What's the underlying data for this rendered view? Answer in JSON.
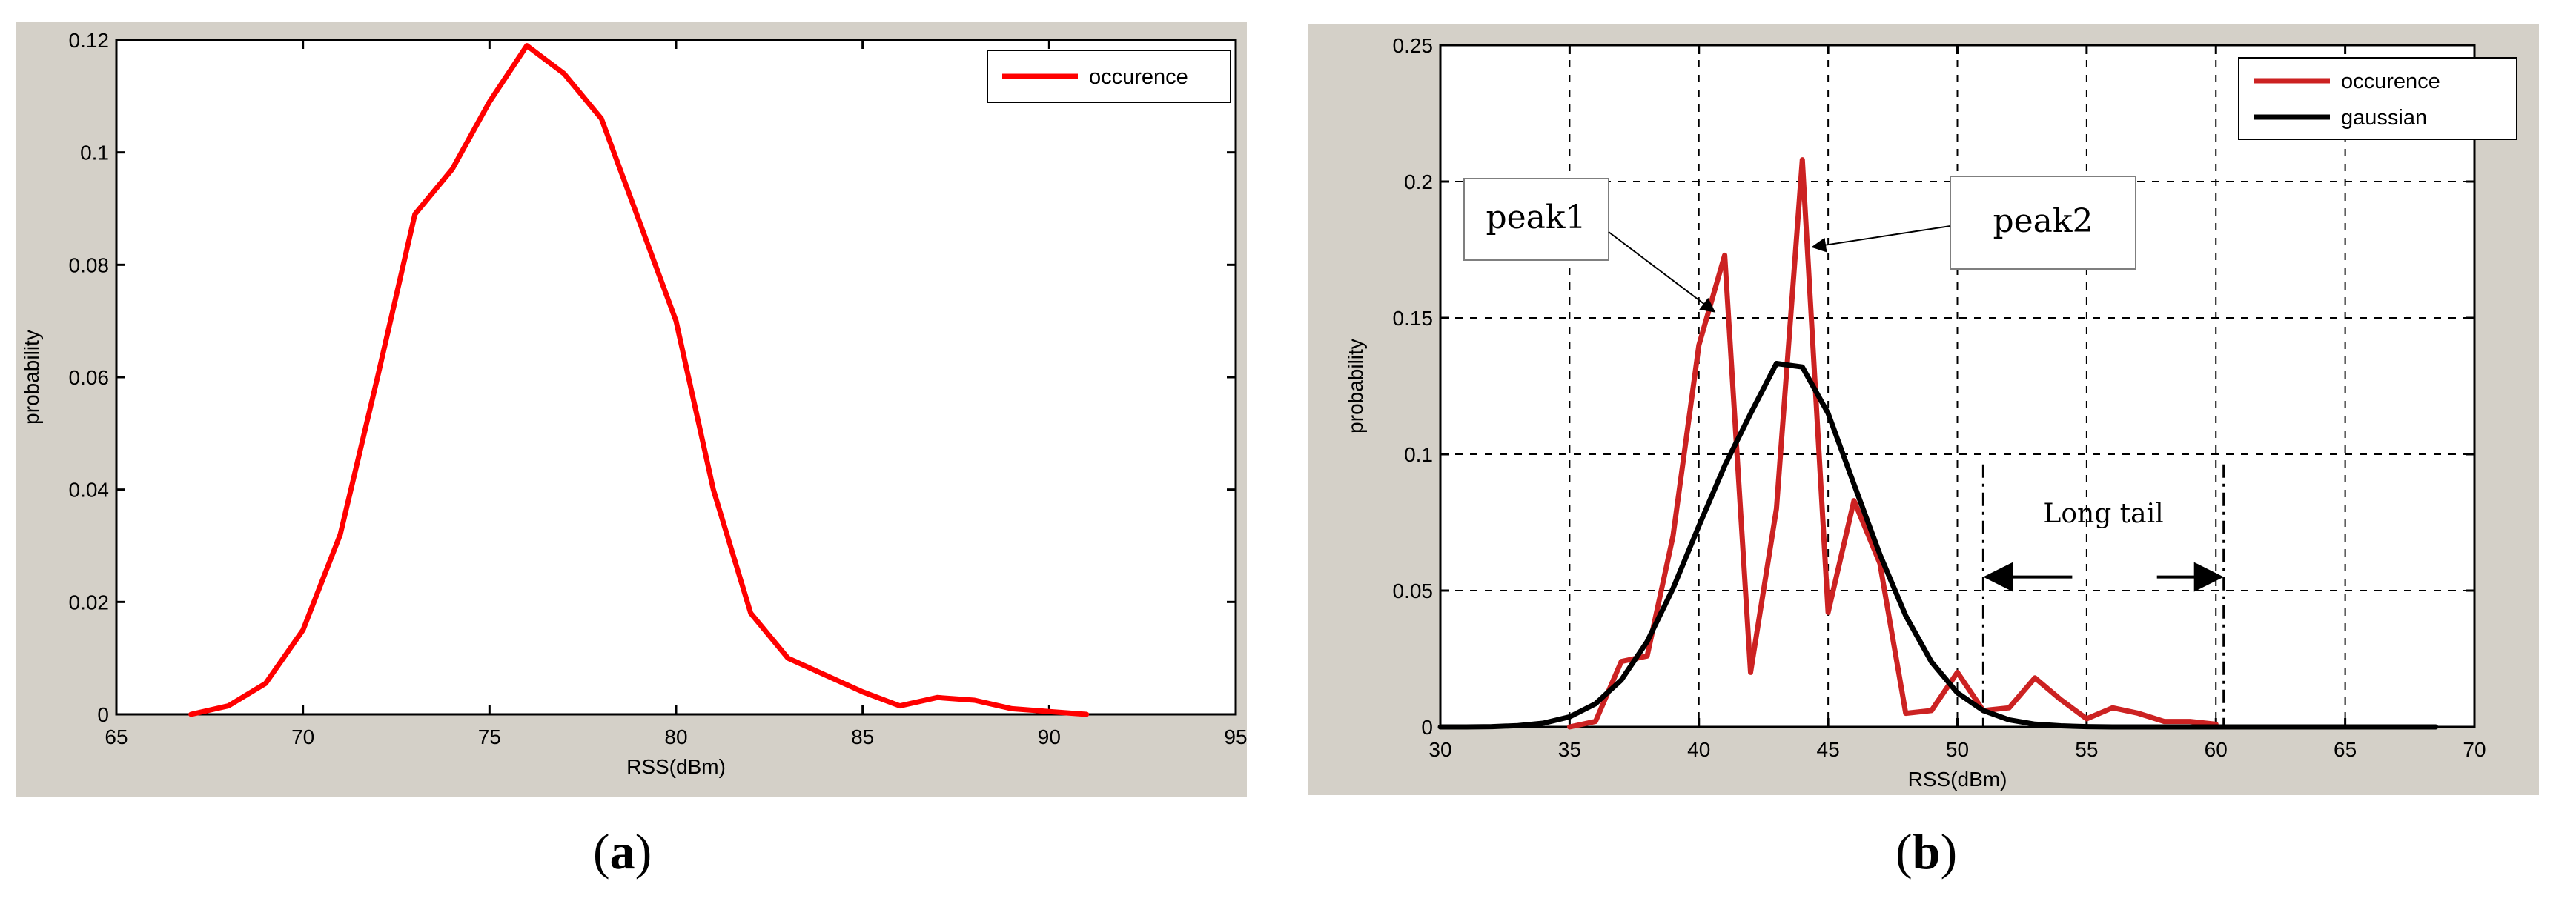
{
  "chart_data": [
    {
      "type": "line",
      "panel_label": "a",
      "xlabel": "RSS(dBm)",
      "ylabel": "probability",
      "xlim": [
        65,
        95
      ],
      "ylim": [
        0,
        0.12
      ],
      "xticks": [
        65,
        70,
        75,
        80,
        85,
        90,
        95
      ],
      "yticks": [
        0,
        0.02,
        0.04,
        0.06,
        0.08,
        0.1,
        0.12
      ],
      "xtick_labels": [
        "65",
        "70",
        "75",
        "80",
        "85",
        "90",
        "95"
      ],
      "ytick_labels": [
        "0",
        "0.02",
        "0.04",
        "0.06",
        "0.08",
        "0.1",
        "0.12"
      ],
      "grid": false,
      "legend_position": "top-right",
      "series": [
        {
          "name": "occurence",
          "color": "#ff0000",
          "x": [
            67,
            68,
            69,
            70,
            71,
            72,
            73,
            74,
            75,
            76,
            77,
            78,
            79,
            80,
            81,
            82,
            83,
            84,
            85,
            86,
            87,
            88,
            89,
            90,
            91
          ],
          "y": [
            0.0,
            0.0015,
            0.0055,
            0.015,
            0.032,
            0.06,
            0.089,
            0.097,
            0.109,
            0.119,
            0.114,
            0.106,
            0.088,
            0.07,
            0.04,
            0.018,
            0.01,
            0.007,
            0.004,
            0.0015,
            0.003,
            0.0025,
            0.001,
            0.0005,
            0.0
          ]
        }
      ]
    },
    {
      "type": "line",
      "panel_label": "b",
      "xlabel": "RSS(dBm)",
      "ylabel": "probability",
      "xlim": [
        30,
        70
      ],
      "ylim": [
        0,
        0.25
      ],
      "xticks": [
        30,
        35,
        40,
        45,
        50,
        55,
        60,
        65,
        70
      ],
      "yticks": [
        0,
        0.05,
        0.1,
        0.15,
        0.2,
        0.25
      ],
      "xtick_labels": [
        "30",
        "35",
        "40",
        "45",
        "50",
        "55",
        "60",
        "65",
        "70"
      ],
      "ytick_labels": [
        "0",
        "0.05",
        "0.1",
        "0.15",
        "0.2",
        "0.25"
      ],
      "grid": true,
      "legend_position": "top-right",
      "series": [
        {
          "name": "occurence",
          "color": "#cc2222",
          "x": [
            35,
            36,
            37,
            38,
            39,
            40,
            41,
            42,
            43,
            44,
            45,
            46,
            47,
            48,
            49,
            50,
            51,
            52,
            53,
            54,
            55,
            56,
            57,
            58,
            59,
            60
          ],
          "y": [
            0.0,
            0.002,
            0.024,
            0.026,
            0.07,
            0.14,
            0.173,
            0.02,
            0.08,
            0.208,
            0.042,
            0.083,
            0.06,
            0.005,
            0.006,
            0.02,
            0.006,
            0.007,
            0.018,
            0.01,
            0.003,
            0.007,
            0.005,
            0.002,
            0.002,
            0.001
          ]
        },
        {
          "name": "gaussian",
          "color": "#000000",
          "x": [
            30,
            31,
            32,
            33,
            34,
            35,
            36,
            37,
            38,
            39,
            40,
            41,
            42,
            43,
            44,
            45,
            46,
            47,
            48,
            49,
            50,
            51,
            52,
            53,
            54,
            55,
            56,
            57,
            58,
            59,
            60,
            61,
            62,
            63,
            64,
            65,
            66,
            67,
            68.5
          ],
          "y": [
            0.0,
            0.0,
            0.0001,
            0.0005,
            0.0014,
            0.0037,
            0.0085,
            0.0172,
            0.0313,
            0.0508,
            0.0737,
            0.0958,
            0.1149,
            0.1333,
            0.132,
            0.115,
            0.089,
            0.0633,
            0.0408,
            0.0238,
            0.0125,
            0.006,
            0.0026,
            0.001,
            0.0004,
            0.0001,
            0.0,
            0.0,
            0.0,
            0.0,
            0.0,
            0.0,
            0.0,
            0.0,
            0.0,
            0.0,
            0.0,
            0.0,
            0.0
          ]
        }
      ],
      "annotations": [
        {
          "text": "peak1",
          "target_x": 41,
          "target_y": 0.155
        },
        {
          "text": "peak2",
          "target_x": 44,
          "target_y": 0.176
        },
        {
          "text": "Long tail",
          "range_x": [
            51,
            60.3
          ],
          "y": 0.055
        }
      ]
    }
  ],
  "captions": {
    "a": "a",
    "b": "b"
  }
}
